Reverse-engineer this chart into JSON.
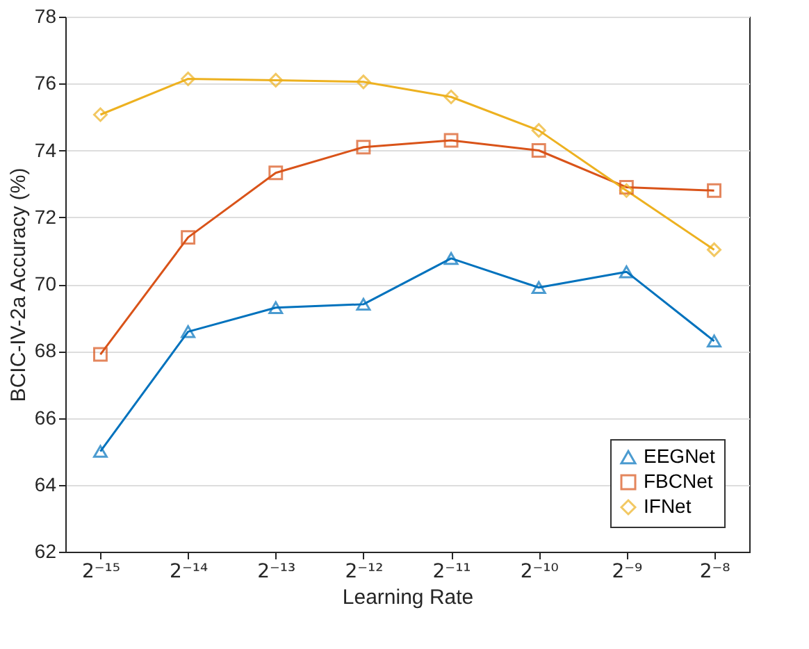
{
  "chart_data": {
    "type": "line",
    "xlabel": "Learning Rate",
    "ylabel": "BCIC-IV-2a Accuracy (%)",
    "categories": [
      "2⁻¹⁵",
      "2⁻¹⁴",
      "2⁻¹³",
      "2⁻¹²",
      "2⁻¹¹",
      "2⁻¹⁰",
      "2⁻⁹",
      "2⁻⁸"
    ],
    "series": [
      {
        "name": "EEGNet",
        "color": "#0072bd",
        "marker": "triangle",
        "values": [
          65.0,
          68.58,
          69.3,
          69.4,
          70.77,
          69.9,
          70.37,
          68.3
        ]
      },
      {
        "name": "FBCNet",
        "color": "#d95319",
        "marker": "square",
        "values": [
          67.9,
          71.4,
          73.33,
          74.1,
          74.3,
          74.0,
          72.9,
          72.8
        ]
      },
      {
        "name": "IFNet",
        "color": "#edb120",
        "marker": "diamond",
        "values": [
          75.07,
          76.14,
          76.1,
          76.05,
          75.6,
          74.6,
          72.8,
          71.03
        ]
      }
    ],
    "ylim": [
      62,
      78
    ],
    "yticks": [
      62,
      64,
      66,
      68,
      70,
      72,
      74,
      76,
      78
    ],
    "grid": "y",
    "legend": "bottom right",
    "line_style": "solid"
  }
}
